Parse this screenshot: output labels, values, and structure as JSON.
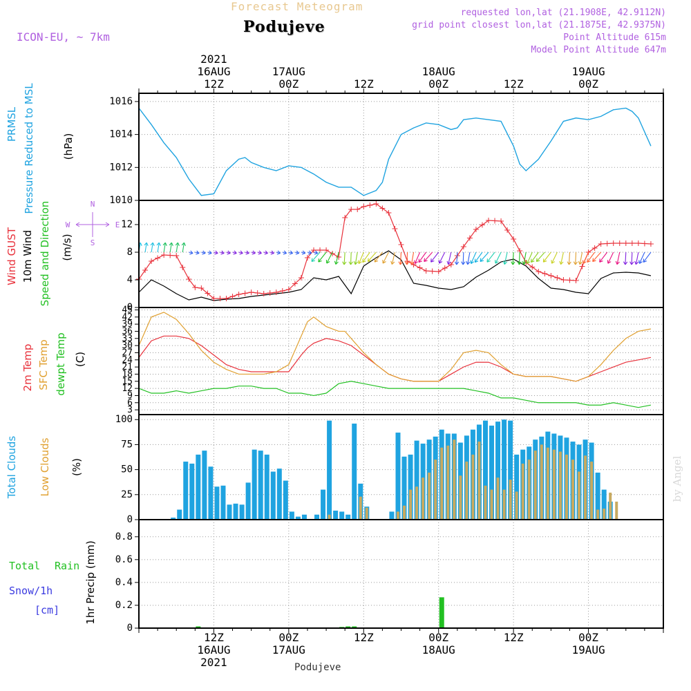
{
  "header": {
    "title": "Forecast Meteogram",
    "station": "Podujeve",
    "model": "ICON-EU, ~ 7km",
    "meta": [
      "requested lon,lat (21.1908E, 42.9112N)",
      "grid point closest lon,lat (21.1875E, 42.9375N)",
      "Point Altitude 615m",
      "Model Point Altitude 647m"
    ]
  },
  "footer": {
    "station": "Podujeve",
    "credit": "by Angel"
  },
  "time_axis": {
    "top_labels": [
      {
        "t": 12,
        "lines": [
          "2021",
          "16AUG",
          "12Z"
        ]
      },
      {
        "t": 24,
        "lines": [
          "17AUG",
          "00Z"
        ]
      },
      {
        "t": 36,
        "lines": [
          "12Z"
        ]
      },
      {
        "t": 48,
        "lines": [
          "18AUG",
          "00Z"
        ]
      },
      {
        "t": 60,
        "lines": [
          "12Z"
        ]
      },
      {
        "t": 72,
        "lines": [
          "19AUG",
          "00Z"
        ]
      }
    ],
    "bottom_labels": [
      {
        "t": 12,
        "lines": [
          "12Z",
          "16AUG",
          "2021"
        ]
      },
      {
        "t": 24,
        "lines": [
          "00Z",
          "17AUG"
        ]
      },
      {
        "t": 36,
        "lines": [
          "12Z"
        ]
      },
      {
        "t": 48,
        "lines": [
          "00Z",
          "18AUG"
        ]
      },
      {
        "t": 60,
        "lines": [
          "12Z"
        ]
      },
      {
        "t": 72,
        "lines": [
          "00Z",
          "19AUG"
        ]
      }
    ]
  },
  "panels": {
    "pressure": {
      "labels": [
        {
          "text": "PRMSL",
          "color": "#1fa3e0"
        },
        {
          "text": "Pressure Reduced to MSL",
          "color": "#1fa3e0"
        },
        {
          "text": "(hPa)",
          "color": "#000000"
        }
      ],
      "ticks": [
        "1010",
        "1012",
        "1014",
        "1016"
      ]
    },
    "wind": {
      "labels": [
        {
          "text": "Wind GUST",
          "color": "#e8303a"
        },
        {
          "text": "10m Wind",
          "color": "#000000"
        },
        {
          "text": "Speed and Direction",
          "color": "#22c022"
        },
        {
          "text": "(m/s)",
          "color": "#000000"
        }
      ],
      "compass": {
        "n": "N",
        "s": "S",
        "e": "E",
        "w": "W"
      },
      "ticks": [
        "0",
        "4",
        "8",
        "12"
      ]
    },
    "temp": {
      "labels": [
        {
          "text": "2m Temp",
          "color": "#e8303a"
        },
        {
          "text": "SFC Temp",
          "color": "#e0a030"
        },
        {
          "text": "dewpt Temp",
          "color": "#22c022"
        },
        {
          "text": "(C)",
          "color": "#000000"
        }
      ],
      "ticks": [
        "3",
        "6",
        "9",
        "12",
        "15",
        "18",
        "21",
        "24",
        "27",
        "30",
        "33",
        "36",
        "39",
        "42",
        "45"
      ]
    },
    "clouds": {
      "labels": [
        {
          "text": "Total Clouds",
          "color": "#1fa3e0"
        },
        {
          "text": "Low Clouds",
          "color": "#e0a030"
        },
        {
          "text": "(%)",
          "color": "#000000"
        }
      ],
      "ticks": [
        "0",
        "25",
        "50",
        "75",
        "100"
      ]
    },
    "precip": {
      "labels": [
        {
          "text": "Total",
          "color": "#22c022"
        },
        {
          "text": "Rain",
          "color": "#22c022"
        },
        {
          "text": "Snow/1h",
          "color": "#3a3ae0"
        },
        {
          "text": "[cm]",
          "color": "#3a3ae0"
        },
        {
          "text": "1hr Precip (mm)",
          "color": "#000000"
        }
      ],
      "ticks": [
        "0",
        "0.2",
        "0.4",
        "0.6",
        "0.8"
      ]
    }
  },
  "chart_data": [
    {
      "type": "line",
      "title": "PRMSL Pressure Reduced to MSL",
      "ylabel": "hPa",
      "x_unit": "hours from 2021-08-16 00Z",
      "ylim": [
        1010,
        1016.5
      ],
      "series": [
        {
          "name": "PRMSL",
          "color": "#1fa3e0",
          "x": [
            0,
            2,
            4,
            6,
            8,
            10,
            12,
            14,
            16,
            17,
            18,
            20,
            22,
            24,
            26,
            27,
            28,
            30,
            32,
            34,
            36,
            38,
            39,
            40,
            42,
            44,
            46,
            48,
            50,
            51,
            52,
            54,
            56,
            58,
            60,
            61,
            62,
            64,
            66,
            68,
            70,
            72,
            74,
            76,
            78,
            79,
            80,
            82
          ],
          "y": [
            1015.6,
            1014.6,
            1013.5,
            1012.6,
            1011.3,
            1010.3,
            1010.4,
            1011.8,
            1012.5,
            1012.6,
            1012.3,
            1012.0,
            1011.8,
            1012.1,
            1012.0,
            1011.8,
            1011.6,
            1011.1,
            1010.8,
            1010.8,
            1010.3,
            1010.6,
            1011.1,
            1012.5,
            1014.0,
            1014.4,
            1014.7,
            1014.6,
            1014.3,
            1014.4,
            1014.9,
            1015.0,
            1014.9,
            1014.8,
            1013.3,
            1012.2,
            1011.8,
            1012.5,
            1013.6,
            1014.8,
            1015.0,
            1014.9,
            1015.1,
            1015.5,
            1015.6,
            1015.4,
            1015.0,
            1013.3
          ]
        }
      ]
    },
    {
      "type": "line",
      "title": "Wind GUST / 10m Wind Speed",
      "ylabel": "m/s",
      "ylim": [
        0,
        15.5
      ],
      "series": [
        {
          "name": "Wind GUST",
          "color": "#e8303a",
          "x": [
            0,
            2,
            4,
            6,
            8,
            9,
            10,
            12,
            14,
            16,
            18,
            20,
            22,
            24,
            26,
            27,
            28,
            30,
            32,
            33,
            34,
            35,
            36,
            38,
            40,
            42,
            43,
            44,
            46,
            48,
            50,
            52,
            54,
            56,
            58,
            60,
            62,
            64,
            66,
            68,
            70,
            72,
            74,
            76,
            78,
            80,
            82
          ],
          "y": [
            4.1,
            6.7,
            7.6,
            7.5,
            4.1,
            2.9,
            2.8,
            1.3,
            1.3,
            1.9,
            2.2,
            2.0,
            2.2,
            2.6,
            4.3,
            7.2,
            8.3,
            8.3,
            7.3,
            13.0,
            14.2,
            14.2,
            14.6,
            15.0,
            13.7,
            9.1,
            6.7,
            6.2,
            5.3,
            5.2,
            6.2,
            8.8,
            11.3,
            12.6,
            12.5,
            9.9,
            6.5,
            5.2,
            4.6,
            4.0,
            3.9,
            8.0,
            9.2,
            9.3,
            9.3,
            9.3,
            9.2
          ]
        },
        {
          "name": "10m Wind",
          "color": "#000000",
          "x": [
            0,
            2,
            4,
            6,
            8,
            10,
            12,
            14,
            16,
            18,
            20,
            22,
            24,
            26,
            28,
            30,
            32,
            34,
            36,
            38,
            40,
            42,
            44,
            46,
            48,
            50,
            52,
            54,
            56,
            58,
            60,
            62,
            64,
            66,
            68,
            70,
            72,
            74,
            76,
            78,
            80,
            82
          ],
          "y": [
            2.2,
            4.0,
            3.1,
            2.0,
            1.1,
            1.5,
            1.0,
            1.2,
            1.3,
            1.6,
            1.8,
            2.0,
            2.2,
            2.6,
            4.3,
            4.0,
            4.5,
            2.0,
            6.0,
            7.2,
            8.2,
            6.9,
            3.5,
            3.2,
            2.8,
            2.6,
            3.0,
            4.4,
            5.4,
            6.6,
            7.0,
            6.0,
            4.2,
            2.8,
            2.6,
            2.2,
            2.0,
            4.2,
            5.0,
            5.1,
            5.0,
            4.6
          ]
        }
      ]
    },
    {
      "type": "line",
      "title": "2m Temp / SFC Temp / dewpt Temp",
      "ylabel": "C",
      "ylim": [
        1,
        46
      ],
      "series": [
        {
          "name": "2m Temp",
          "color": "#e8303a",
          "x": [
            0,
            2,
            4,
            6,
            8,
            10,
            12,
            14,
            16,
            18,
            20,
            22,
            24,
            26,
            27,
            28,
            30,
            32,
            34,
            36,
            38,
            40,
            42,
            44,
            46,
            48,
            50,
            52,
            54,
            56,
            58,
            60,
            62,
            64,
            66,
            68,
            70,
            72,
            74,
            76,
            78,
            80,
            82
          ],
          "y": [
            25,
            32,
            34,
            34,
            33,
            30,
            26,
            22,
            20,
            19,
            19,
            19,
            19,
            26,
            29,
            31,
            33,
            32,
            30,
            26,
            22,
            18,
            16,
            15,
            15,
            15,
            18,
            21,
            23,
            23,
            21,
            18,
            17,
            17,
            17,
            16,
            15,
            17,
            19,
            21,
            23,
            24,
            25
          ]
        },
        {
          "name": "SFC Temp",
          "color": "#e0a030",
          "x": [
            0,
            2,
            4,
            6,
            8,
            10,
            12,
            14,
            16,
            18,
            20,
            22,
            24,
            26,
            27,
            28,
            30,
            32,
            33,
            34,
            36,
            38,
            40,
            42,
            44,
            46,
            48,
            50,
            52,
            54,
            56,
            58,
            60,
            62,
            64,
            66,
            68,
            70,
            72,
            74,
            76,
            78,
            80,
            82
          ],
          "y": [
            30,
            42,
            44,
            41,
            35,
            28,
            23,
            20,
            18,
            18,
            18,
            19,
            22,
            34,
            40,
            42,
            38,
            36,
            36,
            33,
            27,
            22,
            18,
            16,
            15,
            15,
            15,
            20,
            27,
            28,
            27,
            22,
            18,
            17,
            17,
            17,
            16,
            15,
            17,
            22,
            28,
            33,
            36,
            37
          ]
        },
        {
          "name": "dewpt Temp",
          "color": "#22c022",
          "x": [
            0,
            2,
            4,
            6,
            8,
            10,
            12,
            14,
            16,
            18,
            20,
            22,
            24,
            26,
            28,
            30,
            32,
            34,
            36,
            38,
            40,
            42,
            44,
            46,
            48,
            50,
            52,
            54,
            56,
            58,
            60,
            62,
            64,
            66,
            68,
            70,
            72,
            74,
            76,
            78,
            80,
            82
          ],
          "y": [
            12,
            10,
            10,
            11,
            10,
            11,
            12,
            12,
            13,
            13,
            12,
            12,
            10,
            10,
            9,
            10,
            14,
            15,
            14,
            13,
            12,
            12,
            12,
            12,
            12,
            12,
            12,
            11,
            10,
            8,
            8,
            7,
            6,
            6,
            6,
            6,
            5,
            5,
            6,
            5,
            4,
            5
          ]
        }
      ]
    },
    {
      "type": "bar",
      "title": "Total Clouds / Low Clouds",
      "ylabel": "%",
      "ylim": [
        0,
        105
      ],
      "x": [
        0,
        1,
        2,
        3,
        4,
        5,
        6,
        7,
        8,
        9,
        10,
        11,
        12,
        13,
        14,
        15,
        16,
        17,
        18,
        19,
        20,
        21,
        22,
        23,
        24,
        25,
        26,
        27,
        28,
        29,
        30,
        31,
        32,
        33,
        34,
        35,
        36,
        37,
        38,
        39,
        40,
        41,
        42,
        43,
        44,
        45,
        46,
        47,
        48,
        49,
        50,
        51,
        52,
        53,
        54,
        55,
        56,
        57,
        58,
        59,
        60,
        61,
        62,
        63,
        64,
        65,
        66,
        67,
        68,
        69,
        70,
        71,
        72,
        73,
        74,
        75,
        76,
        77,
        78,
        79,
        80,
        81,
        82,
        83
      ],
      "series": [
        {
          "name": "Total Clouds",
          "color": "#1fa3e0",
          "values": [
            0,
            0,
            0,
            0,
            0,
            2,
            10,
            58,
            56,
            65,
            69,
            53,
            33,
            34,
            15,
            16,
            15,
            37,
            70,
            69,
            65,
            48,
            51,
            39,
            8,
            3,
            5,
            0,
            5,
            30,
            99,
            9,
            8,
            5,
            96,
            36,
            13,
            0,
            0,
            0,
            8,
            87,
            63,
            65,
            79,
            76,
            80,
            83,
            90,
            86,
            86,
            77,
            84,
            90,
            95,
            99,
            94,
            98,
            100,
            99,
            65,
            70,
            73,
            80,
            83,
            88,
            86,
            84,
            82,
            78,
            75,
            80,
            77,
            47,
            30,
            18,
            0,
            0,
            0,
            0,
            0,
            0,
            0,
            0
          ]
        },
        {
          "name": "Low Clouds",
          "color": "#c8aa60",
          "values": [
            0,
            0,
            0,
            0,
            0,
            0,
            0,
            0,
            0,
            0,
            0,
            0,
            0,
            0,
            0,
            0,
            0,
            0,
            0,
            0,
            0,
            0,
            0,
            0,
            0,
            0,
            0,
            0,
            0,
            0,
            5,
            0,
            0,
            0,
            0,
            23,
            12,
            0,
            0,
            0,
            0,
            8,
            14,
            30,
            33,
            42,
            47,
            60,
            72,
            74,
            80,
            44,
            58,
            65,
            78,
            34,
            30,
            42,
            30,
            40,
            28,
            56,
            60,
            69,
            75,
            72,
            70,
            68,
            65,
            60,
            48,
            64,
            58,
            10,
            11,
            27,
            18,
            0,
            0,
            0,
            0,
            0,
            0,
            0
          ]
        }
      ]
    },
    {
      "type": "bar",
      "title": "1hr Precip",
      "ylabel": "1hr Precip (mm)",
      "ylim": [
        0,
        0.95
      ],
      "x": [
        9,
        32,
        33,
        34,
        48
      ],
      "series": [
        {
          "name": "Total Rain",
          "color": "#22c022",
          "values": [
            0.015,
            0.01,
            0.015,
            0.015,
            0.27
          ]
        }
      ]
    }
  ]
}
